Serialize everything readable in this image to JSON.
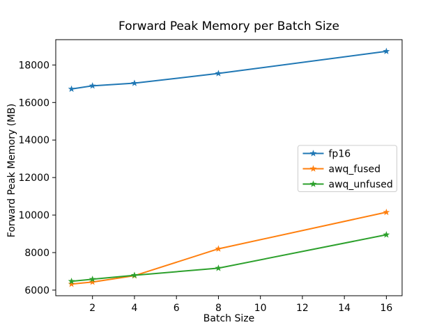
{
  "figure": {
    "background": "#ffffff",
    "spine_color": "#000000",
    "tick_label_color": "#000000"
  },
  "chart_data": {
    "type": "line",
    "title": "Forward Peak Memory per Batch Size",
    "xlabel": "Batch Size",
    "ylabel": "Forward Peak Memory (MB)",
    "x": [
      1,
      2,
      4,
      8,
      16
    ],
    "series": [
      {
        "name": "fp16",
        "color": "#1f77b4",
        "marker": "star",
        "values": [
          16720,
          16890,
          17030,
          17550,
          18730
        ]
      },
      {
        "name": "awq_fused",
        "color": "#ff7f0e",
        "marker": "star",
        "values": [
          6320,
          6430,
          6770,
          8200,
          10150
        ]
      },
      {
        "name": "awq_unfused",
        "color": "#2ca02c",
        "marker": "star",
        "values": [
          6470,
          6580,
          6790,
          7170,
          8950
        ]
      }
    ],
    "xticks": [
      2,
      4,
      6,
      8,
      10,
      12,
      14,
      16
    ],
    "yticks": [
      6000,
      8000,
      10000,
      12000,
      14000,
      16000,
      18000
    ],
    "xlim": [
      0.25,
      16.75
    ],
    "ylim": [
      5700,
      19350
    ],
    "grid": false,
    "legend": {
      "position": "center-right",
      "border_color": "#cccccc",
      "background": "#ffffff",
      "entries": [
        "fp16",
        "awq_fused",
        "awq_unfused"
      ]
    }
  }
}
